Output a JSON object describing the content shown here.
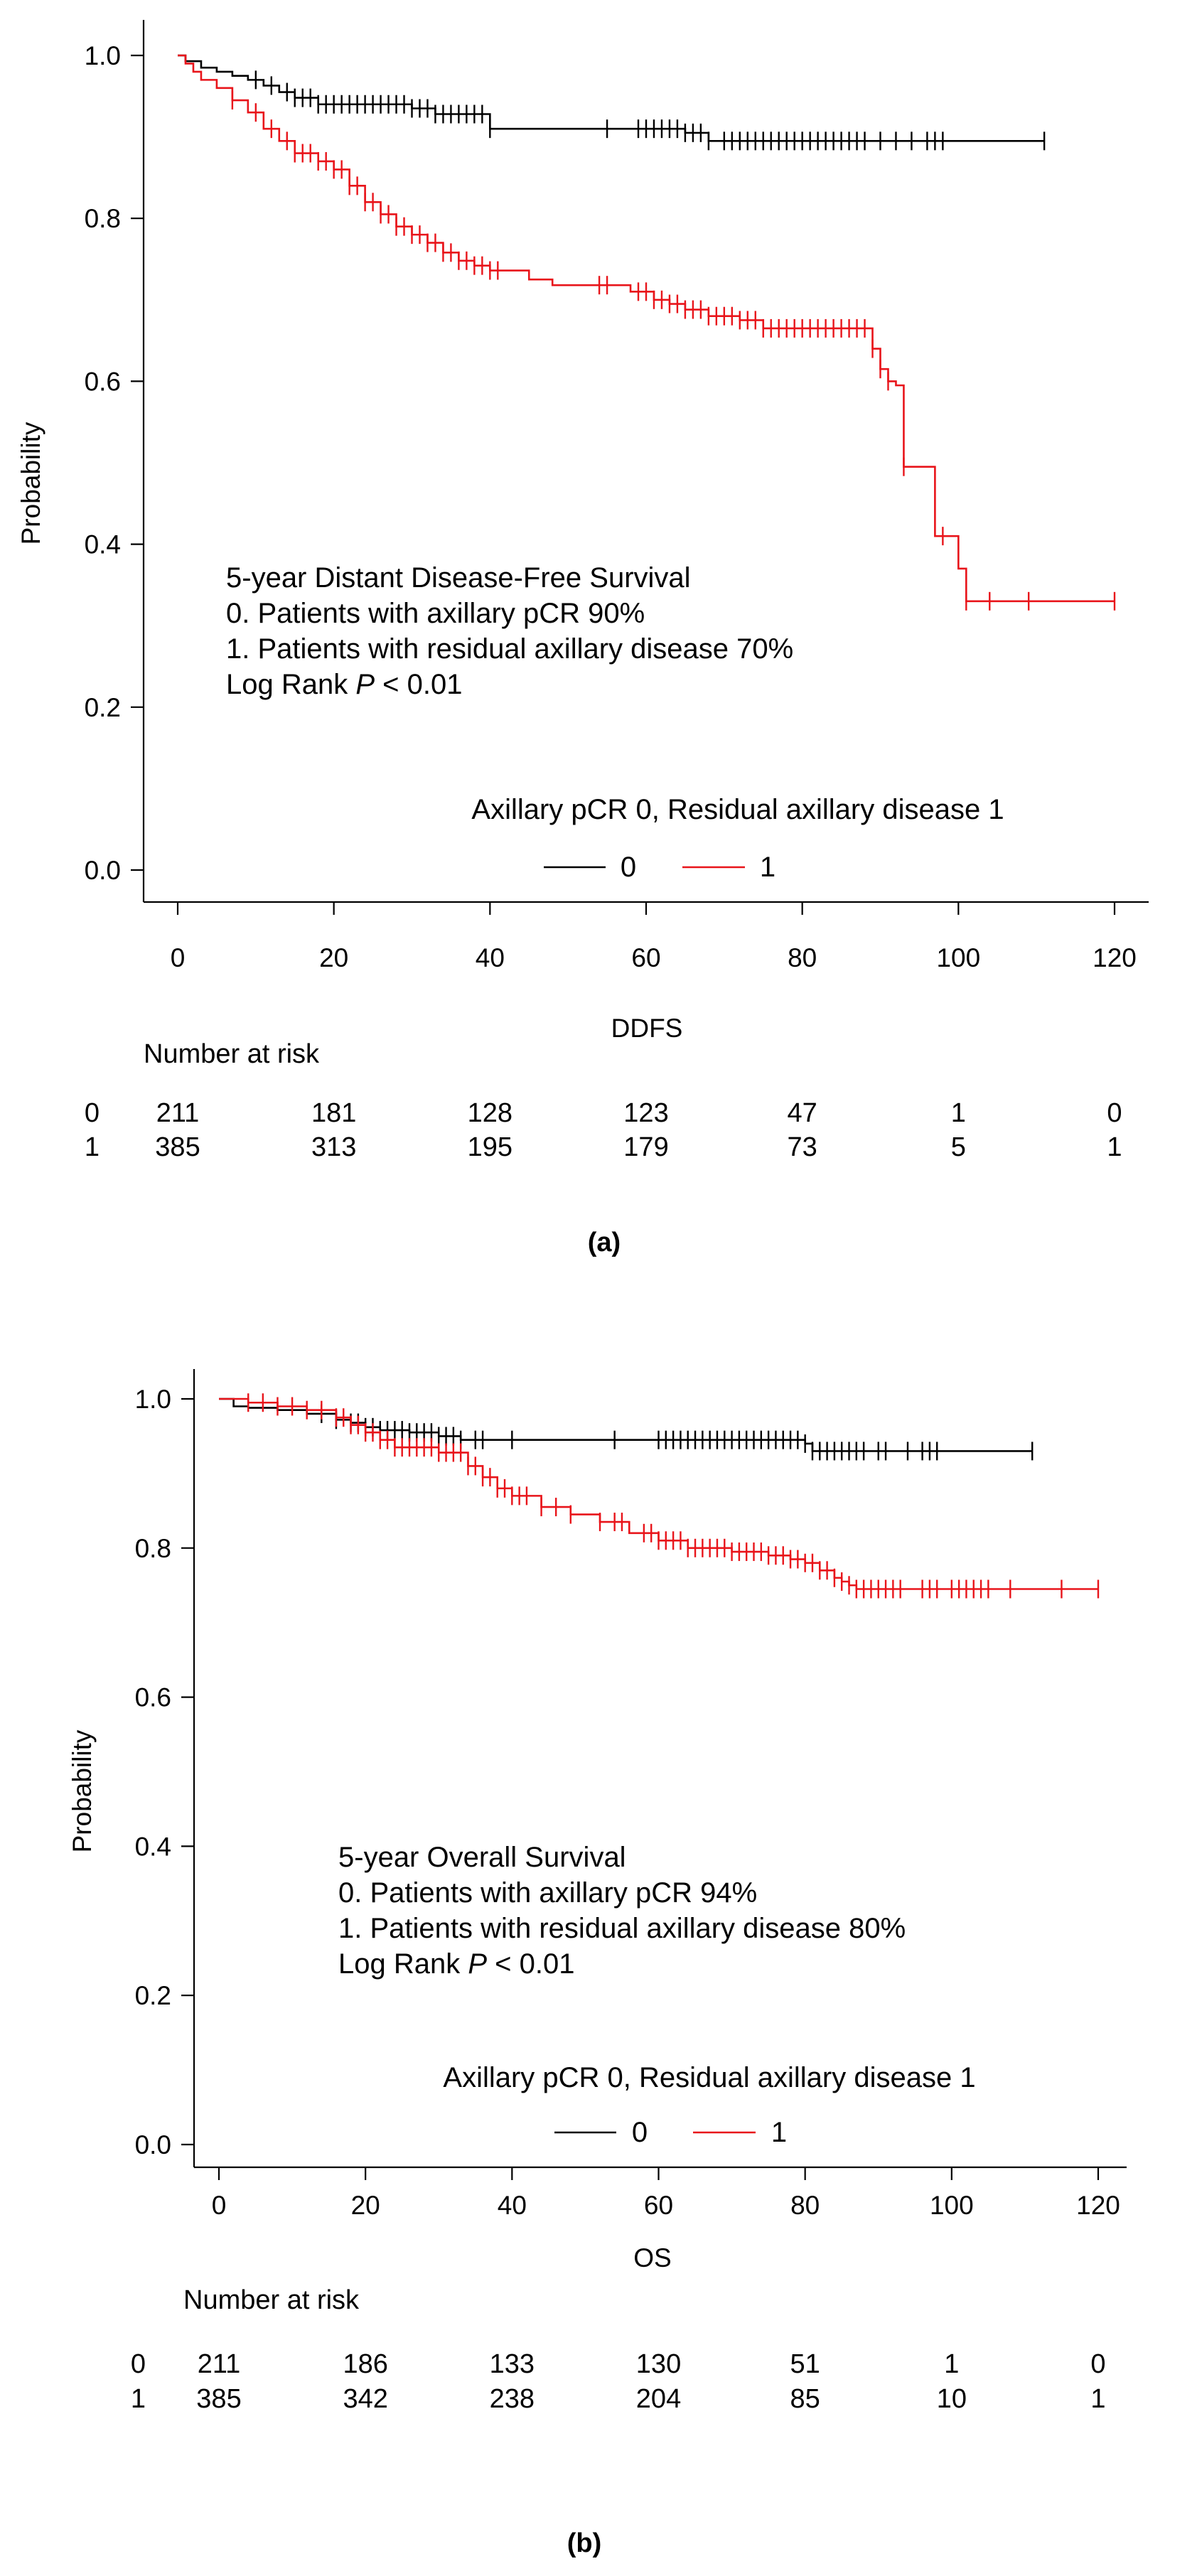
{
  "chart_data": [
    {
      "type": "line",
      "subtype": "kaplan-meier",
      "panel_label": "(a)",
      "xlabel": "DDFS",
      "ylabel": "Probability",
      "xlim": [
        0,
        120
      ],
      "ylim": [
        0,
        1
      ],
      "x_ticks": [
        "0",
        "20",
        "40",
        "60",
        "80",
        "100",
        "120"
      ],
      "y_ticks": [
        "0.0",
        "0.2",
        "0.4",
        "0.6",
        "0.8",
        "1.0"
      ],
      "annotation": {
        "title": "5-year Distant Disease-Free Survival",
        "line0": "0.  Patients with axillary pCR 90%",
        "line1": "1.  Patients with residual axillary disease 70%",
        "logrank_prefix": "Log Rank ",
        "logrank_p": "P",
        "logrank_suffix": " < 0.01"
      },
      "legend": {
        "title": "Axillary pCR 0, Residual axillary disease 1",
        "entries": [
          {
            "label": "0",
            "color": "#000000"
          },
          {
            "label": "1",
            "color": "#e8141a"
          }
        ],
        "placement": "bottom-right"
      },
      "series": [
        {
          "name": "0",
          "color": "#000000",
          "x": [
            0,
            1,
            3,
            5,
            7,
            9,
            11,
            13,
            15,
            18,
            30,
            33,
            40,
            65,
            68,
            111
          ],
          "y": [
            1.0,
            0.993,
            0.985,
            0.98,
            0.975,
            0.97,
            0.963,
            0.955,
            0.948,
            0.94,
            0.935,
            0.928,
            0.91,
            0.905,
            0.895,
            0.895
          ],
          "censor_x": [
            10,
            12,
            14,
            15,
            16,
            17,
            18,
            19,
            20,
            21,
            22,
            23,
            24,
            25,
            26,
            27,
            28,
            29,
            30,
            31,
            32,
            33,
            34,
            35,
            36,
            37,
            38,
            39,
            40,
            55,
            59,
            60,
            61,
            62,
            63,
            64,
            65,
            66,
            67,
            68,
            70,
            71,
            72,
            73,
            74,
            75,
            76,
            77,
            78,
            79,
            80,
            81,
            82,
            83,
            84,
            85,
            86,
            87,
            88,
            90,
            92,
            94,
            96,
            97,
            98,
            111
          ]
        },
        {
          "name": "1",
          "color": "#e8141a",
          "x": [
            0,
            1,
            2,
            3,
            5,
            7,
            9,
            11,
            13,
            15,
            18,
            20,
            22,
            24,
            26,
            28,
            30,
            32,
            34,
            36,
            38,
            40,
            45,
            48,
            58,
            61,
            63,
            65,
            68,
            72,
            75,
            89,
            90,
            91,
            92,
            93,
            97,
            100,
            101,
            120
          ],
          "y": [
            1.0,
            0.99,
            0.98,
            0.97,
            0.96,
            0.945,
            0.93,
            0.91,
            0.895,
            0.88,
            0.87,
            0.86,
            0.84,
            0.82,
            0.805,
            0.79,
            0.78,
            0.77,
            0.758,
            0.748,
            0.742,
            0.736,
            0.725,
            0.718,
            0.71,
            0.7,
            0.695,
            0.688,
            0.68,
            0.675,
            0.665,
            0.64,
            0.615,
            0.6,
            0.595,
            0.495,
            0.41,
            0.37,
            0.33,
            0.33
          ],
          "censor_x": [
            7,
            10,
            12,
            14,
            15,
            16,
            17,
            18,
            19,
            20,
            21,
            22,
            23,
            24,
            25,
            26,
            27,
            28,
            29,
            30,
            31,
            32,
            33,
            34,
            35,
            36,
            37,
            38,
            39,
            40,
            41,
            54,
            55,
            59,
            60,
            61,
            62,
            63,
            64,
            65,
            66,
            67,
            68,
            69,
            70,
            71,
            72,
            73,
            74,
            75,
            76,
            77,
            78,
            79,
            80,
            81,
            82,
            83,
            84,
            85,
            86,
            87,
            88,
            89,
            90,
            91,
            93,
            98,
            101,
            104,
            109,
            120
          ]
        }
      ],
      "risk_table": {
        "title": "Number at risk",
        "rows": [
          {
            "group": "0",
            "counts": [
              "211",
              "181",
              "128",
              "123",
              "47",
              "1",
              "0"
            ]
          },
          {
            "group": "1",
            "counts": [
              "385",
              "313",
              "195",
              "179",
              "73",
              "5",
              "1"
            ]
          }
        ]
      }
    },
    {
      "type": "line",
      "subtype": "kaplan-meier",
      "panel_label": "(b)",
      "xlabel": "OS",
      "ylabel": "Probability",
      "xlim": [
        0,
        120
      ],
      "ylim": [
        0,
        1
      ],
      "x_ticks": [
        "0",
        "20",
        "40",
        "60",
        "80",
        "100",
        "120"
      ],
      "y_ticks": [
        "0.0",
        "0.2",
        "0.4",
        "0.6",
        "0.8",
        "1.0"
      ],
      "annotation": {
        "title": "5-year Overall Survival",
        "line0": "0.  Patients with axillary pCR 94%",
        "line1": "1.  Patients with residual axillary disease 80%",
        "logrank_prefix": "Log Rank ",
        "logrank_p": "P",
        "logrank_suffix": " < 0.01"
      },
      "legend": {
        "title": "Axillary pCR 0, Residual axillary disease 1",
        "entries": [
          {
            "label": "0",
            "color": "#000000"
          },
          {
            "label": "1",
            "color": "#e8141a"
          }
        ],
        "placement": "bottom-right"
      },
      "series": [
        {
          "name": "0",
          "color": "#000000",
          "x": [
            0,
            2,
            4,
            8,
            12,
            16,
            18,
            20,
            22,
            26,
            30,
            33,
            80,
            81,
            111
          ],
          "y": [
            1.0,
            0.99,
            0.988,
            0.985,
            0.98,
            0.972,
            0.968,
            0.962,
            0.958,
            0.955,
            0.95,
            0.945,
            0.94,
            0.93,
            0.93
          ],
          "censor_x": [
            14,
            16,
            18,
            19,
            20,
            21,
            22,
            23,
            24,
            25,
            26,
            27,
            28,
            29,
            30,
            31,
            32,
            33,
            35,
            36,
            40,
            54,
            60,
            61,
            62,
            63,
            64,
            65,
            66,
            67,
            68,
            69,
            70,
            71,
            72,
            73,
            74,
            75,
            76,
            77,
            78,
            79,
            80,
            81,
            82,
            83,
            84,
            85,
            86,
            87,
            88,
            90,
            91,
            94,
            96,
            97,
            98,
            111
          ]
        },
        {
          "name": "1",
          "color": "#e8141a",
          "x": [
            0,
            4,
            8,
            12,
            16,
            18,
            20,
            22,
            24,
            30,
            34,
            36,
            38,
            40,
            44,
            48,
            52,
            56,
            60,
            64,
            70,
            75,
            78,
            80,
            82,
            84,
            85,
            86,
            87,
            120
          ],
          "y": [
            1.0,
            0.995,
            0.99,
            0.985,
            0.975,
            0.965,
            0.955,
            0.945,
            0.935,
            0.928,
            0.91,
            0.895,
            0.88,
            0.87,
            0.855,
            0.845,
            0.835,
            0.82,
            0.81,
            0.8,
            0.795,
            0.79,
            0.785,
            0.78,
            0.77,
            0.76,
            0.755,
            0.75,
            0.745,
            0.745
          ],
          "censor_x": [
            4,
            6,
            8,
            10,
            12,
            14,
            16,
            17,
            18,
            19,
            20,
            21,
            22,
            23,
            24,
            25,
            26,
            27,
            28,
            29,
            30,
            31,
            32,
            33,
            34,
            35,
            36,
            37,
            38,
            39,
            40,
            41,
            42,
            44,
            46,
            48,
            52,
            54,
            55,
            58,
            59,
            60,
            61,
            62,
            63,
            64,
            65,
            66,
            67,
            68,
            69,
            70,
            71,
            72,
            73,
            74,
            75,
            76,
            77,
            78,
            79,
            80,
            81,
            82,
            83,
            84,
            85,
            86,
            87,
            88,
            89,
            90,
            91,
            92,
            93,
            96,
            97,
            98,
            100,
            101,
            102,
            103,
            104,
            105,
            108,
            115,
            120
          ]
        }
      ],
      "risk_table": {
        "title": "Number at risk",
        "rows": [
          {
            "group": "0",
            "counts": [
              "211",
              "186",
              "133",
              "130",
              "51",
              "1",
              "0"
            ]
          },
          {
            "group": "1",
            "counts": [
              "385",
              "342",
              "238",
              "204",
              "85",
              "10",
              "1"
            ]
          }
        ]
      }
    }
  ]
}
